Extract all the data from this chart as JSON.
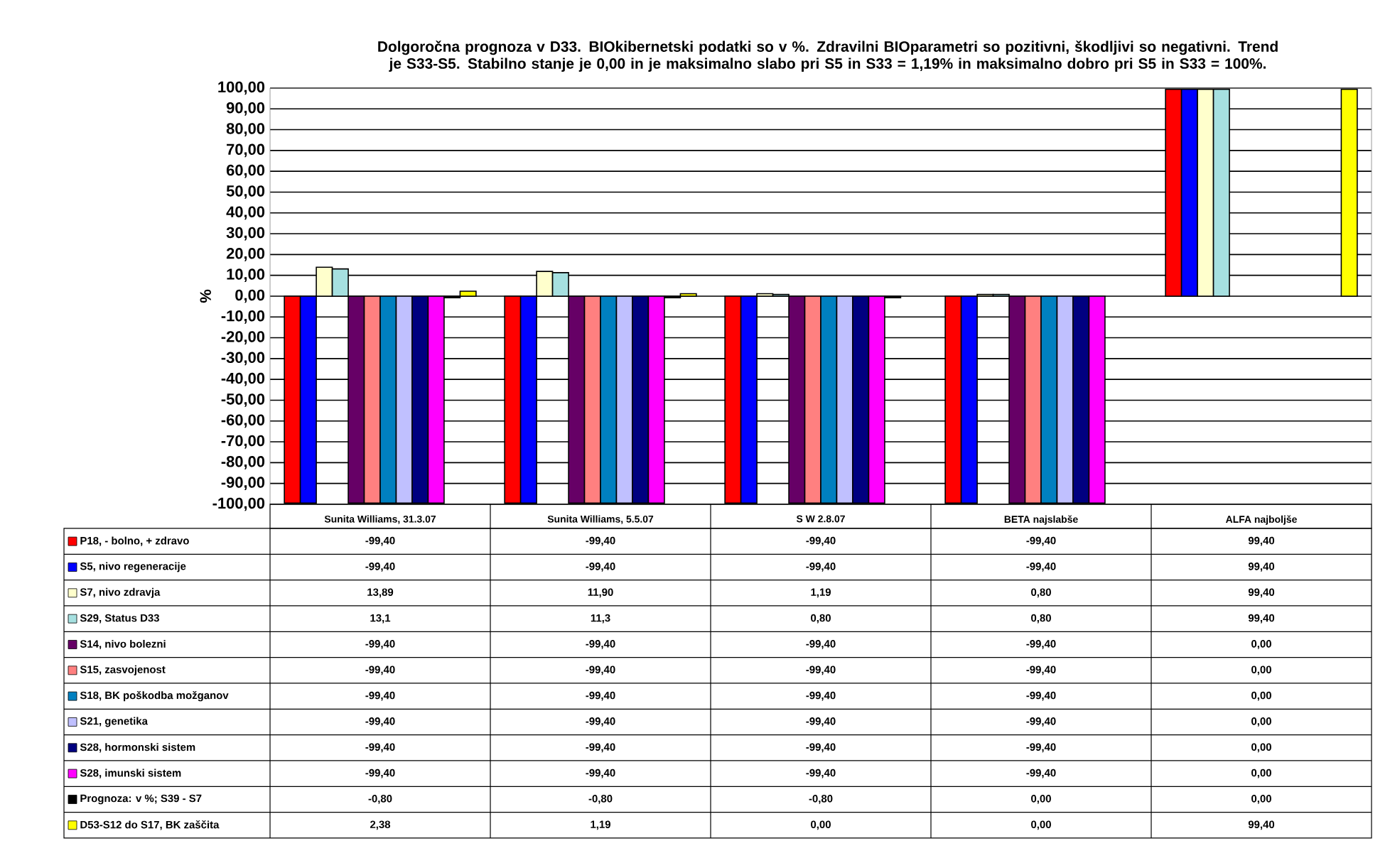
{
  "chart_data": {
    "type": "bar",
    "title": "Dolgoročna prognoza v D33. BIOkibernetski podatki so v %. Zdravilni BIOparametri so pozitivni, škodljivi so negativni. Trend je S33-S5. Stabilno stanje je 0,00 in je maksimalno slabo pri S5 in S33 = 1,19% in maksimalno dobro pri S5 in S33 = 100%.",
    "ylabel": "%",
    "categories": [
      "Sunita Williams, 31.3.07",
      "Sunita Williams, 5.5.07",
      "S W   2.8.07",
      "BETA najslabše",
      "ALFA najboljše"
    ],
    "ylim": [
      -100,
      100
    ],
    "yticks": [
      {
        "value": -100,
        "label": "-100,00"
      },
      {
        "value": -90,
        "label": "-90,00"
      },
      {
        "value": -80,
        "label": "-80,00"
      },
      {
        "value": -70,
        "label": "-70,00"
      },
      {
        "value": -60,
        "label": "-60,00"
      },
      {
        "value": -50,
        "label": "-50,00"
      },
      {
        "value": -40,
        "label": "-40,00"
      },
      {
        "value": -30,
        "label": "-30,00"
      },
      {
        "value": -20,
        "label": "-20,00"
      },
      {
        "value": -10,
        "label": "-10,00"
      },
      {
        "value": 0,
        "label": "0,00"
      },
      {
        "value": 10,
        "label": "10,00"
      },
      {
        "value": 20,
        "label": "20,00"
      },
      {
        "value": 30,
        "label": "30,00"
      },
      {
        "value": 40,
        "label": "40,00"
      },
      {
        "value": 50,
        "label": "50,00"
      },
      {
        "value": 60,
        "label": "60,00"
      },
      {
        "value": 70,
        "label": "70,00"
      },
      {
        "value": 80,
        "label": "80,00"
      },
      {
        "value": 90,
        "label": "90,00"
      },
      {
        "value": 100,
        "label": "100,00"
      }
    ],
    "grid": "y",
    "legend": "bottom",
    "series": [
      {
        "name": "P18, - bolno, + zdravo",
        "color": "#ff0000",
        "values": [
          -99.4,
          -99.4,
          -99.4,
          -99.4,
          99.4
        ],
        "value_labels": [
          "-99,40",
          "-99,40",
          "-99,40",
          "-99,40",
          "99,40"
        ]
      },
      {
        "name": "S5, nivo regeneracije",
        "color": "#0000ff",
        "values": [
          -99.4,
          -99.4,
          -99.4,
          -99.4,
          99.4
        ],
        "value_labels": [
          "-99,40",
          "-99,40",
          "-99,40",
          "-99,40",
          "99,40"
        ]
      },
      {
        "name": "S7, nivo zdravja",
        "color": "#ffffcc",
        "values": [
          13.89,
          11.9,
          1.19,
          0.8,
          99.4
        ],
        "value_labels": [
          "13,89",
          "11,90",
          "1,19",
          "0,80",
          "99,40"
        ]
      },
      {
        "name": "S29, Status D33",
        "color": "#a6e0e0",
        "values": [
          13.1,
          11.3,
          0.8,
          0.8,
          99.4
        ],
        "value_labels": [
          "13,1",
          "11,3",
          "0,80",
          "0,80",
          "99,40"
        ]
      },
      {
        "name": "S14, nivo bolezni",
        "color": "#660066",
        "values": [
          -99.4,
          -99.4,
          -99.4,
          -99.4,
          0
        ],
        "value_labels": [
          "-99,40",
          "-99,40",
          "-99,40",
          "-99,40",
          "0,00"
        ]
      },
      {
        "name": "S15, zasvojenost",
        "color": "#ff8080",
        "values": [
          -99.4,
          -99.4,
          -99.4,
          -99.4,
          0
        ],
        "value_labels": [
          "-99,40",
          "-99,40",
          "-99,40",
          "-99,40",
          "0,00"
        ]
      },
      {
        "name": "S18, BK poškodba možganov",
        "color": "#0080c0",
        "values": [
          -99.4,
          -99.4,
          -99.4,
          -99.4,
          0
        ],
        "value_labels": [
          "-99,40",
          "-99,40",
          "-99,40",
          "-99,40",
          "0,00"
        ]
      },
      {
        "name": "S21, genetika",
        "color": "#c0c0ff",
        "values": [
          -99.4,
          -99.4,
          -99.4,
          -99.4,
          0
        ],
        "value_labels": [
          "-99,40",
          "-99,40",
          "-99,40",
          "-99,40",
          "0,00"
        ]
      },
      {
        "name": "S28, hormonski sistem",
        "color": "#000080",
        "values": [
          -99.4,
          -99.4,
          -99.4,
          -99.4,
          0
        ],
        "value_labels": [
          "-99,40",
          "-99,40",
          "-99,40",
          "-99,40",
          "0,00"
        ]
      },
      {
        "name": "S28, imunski sistem",
        "color": "#ff00ff",
        "values": [
          -99.4,
          -99.4,
          -99.4,
          -99.4,
          0
        ],
        "value_labels": [
          "-99,40",
          "-99,40",
          "-99,40",
          "-99,40",
          "0,00"
        ]
      },
      {
        "name": "Prognoza: v %; S39 - S7",
        "color": "#000000",
        "values": [
          -0.8,
          -0.8,
          -0.8,
          0,
          0
        ],
        "value_labels": [
          "-0,80",
          "-0,80",
          "-0,80",
          "0,00",
          "0,00"
        ]
      },
      {
        "name": "D53-S12 do S17, BK zaščita",
        "color": "#ffff00",
        "values": [
          2.38,
          1.19,
          0,
          0,
          99.4
        ],
        "value_labels": [
          "2,38",
          "1,19",
          "0,00",
          "0,00",
          "99,40"
        ]
      }
    ]
  }
}
